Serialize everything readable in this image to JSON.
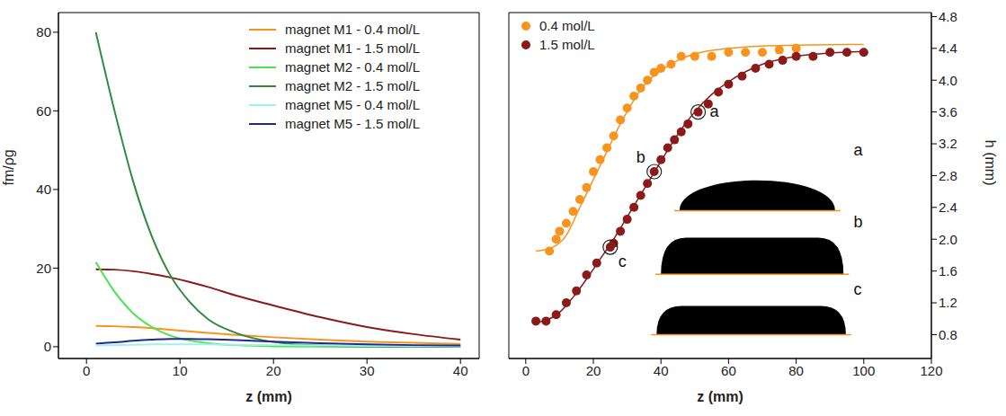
{
  "chart_data": [
    {
      "type": "line",
      "x_label": "z (mm)",
      "y_label": "fm/ρg",
      "x": [
        1,
        3,
        5,
        7,
        9,
        11,
        13,
        16,
        20,
        25,
        30,
        35,
        40
      ],
      "series": [
        {
          "name": "magnet M1 - 0.4 mol/L",
          "color": "#f7941d",
          "values": [
            5.3,
            5.2,
            5.0,
            4.7,
            4.3,
            3.9,
            3.5,
            3.0,
            2.4,
            1.8,
            1.3,
            1.0,
            0.7
          ]
        },
        {
          "name": "magnet M1 - 1.5 mol/L",
          "color": "#8b1a1a",
          "values": [
            19.7,
            19.6,
            19.2,
            18.5,
            17.6,
            16.5,
            15.2,
            13.0,
            10.5,
            7.5,
            5.0,
            3.2,
            1.8
          ]
        },
        {
          "name": "magnet M2 - 0.4 mol/L",
          "color": "#4ce34c",
          "values": [
            21.5,
            14,
            8.5,
            5,
            2.8,
            1.6,
            0.9,
            0.4,
            0.1,
            0,
            0,
            0,
            0
          ]
        },
        {
          "name": "magnet M2 - 1.5 mol/L",
          "color": "#2e8b3e",
          "values": [
            80,
            60,
            42,
            28,
            18,
            11.5,
            7,
            3.5,
            1.2,
            0.3,
            0.1,
            0,
            0
          ]
        },
        {
          "name": "magnet M5 - 0.4 mol/L",
          "color": "#a0f0f0",
          "values": [
            0.3,
            0.4,
            0.5,
            0.6,
            0.6,
            0.6,
            0.6,
            0.5,
            0.4,
            0.3,
            0.2,
            0.15,
            0.1
          ]
        },
        {
          "name": "magnet M5 - 1.5 mol/L",
          "color": "#1f2a8a",
          "values": [
            0.8,
            1.1,
            1.5,
            1.8,
            2.0,
            2.0,
            1.9,
            1.7,
            1.3,
            0.9,
            0.6,
            0.4,
            0.3
          ]
        }
      ],
      "xlim": [
        -3,
        42
      ],
      "ylim": [
        -3,
        85
      ],
      "xticks": [
        0,
        10,
        20,
        30,
        40
      ],
      "yticks": [
        0,
        20,
        40,
        60,
        80
      ],
      "legend": "upper right"
    },
    {
      "type": "scatter",
      "x_label": "z (mm)",
      "y_label": "h (mm)",
      "series": [
        {
          "name": "0.4 mol/L",
          "color": "#f7941d",
          "marker": "circle",
          "x": [
            7,
            9,
            10,
            12,
            14,
            16,
            18,
            20,
            22,
            24,
            26,
            28,
            30,
            32,
            34,
            36,
            38,
            40,
            43,
            46,
            50,
            55,
            60,
            65,
            70,
            75,
            80
          ],
          "values": [
            1.85,
            2.0,
            2.1,
            2.2,
            2.35,
            2.5,
            2.65,
            2.85,
            3.0,
            3.15,
            3.3,
            3.5,
            3.65,
            3.8,
            3.9,
            4.0,
            4.1,
            4.15,
            4.2,
            4.3,
            4.3,
            4.3,
            4.35,
            4.35,
            4.35,
            4.38,
            4.4
          ],
          "fit_x": [
            3,
            8,
            12,
            16,
            20,
            24,
            28,
            32,
            36,
            40,
            45,
            50,
            60,
            70,
            80,
            100
          ],
          "fit_values": [
            1.85,
            1.9,
            2.05,
            2.4,
            2.75,
            3.1,
            3.45,
            3.75,
            3.98,
            4.12,
            4.25,
            4.33,
            4.4,
            4.43,
            4.44,
            4.45
          ]
        },
        {
          "name": "1.5 mol/L",
          "color": "#8b1a1a",
          "marker": "circle",
          "x": [
            3,
            6,
            9,
            12,
            15,
            18,
            21,
            25,
            26,
            28,
            30,
            32,
            34,
            36,
            38,
            40,
            42,
            44,
            46,
            48,
            51,
            54,
            57,
            60,
            64,
            68,
            72,
            76,
            80,
            85,
            90,
            95,
            100
          ],
          "values": [
            0.97,
            0.97,
            1.05,
            1.2,
            1.35,
            1.55,
            1.7,
            1.9,
            1.95,
            2.1,
            2.25,
            2.4,
            2.55,
            2.7,
            2.85,
            3.0,
            3.15,
            3.25,
            3.35,
            3.45,
            3.6,
            3.7,
            3.85,
            3.95,
            4.05,
            4.15,
            4.2,
            4.25,
            4.3,
            4.3,
            4.35,
            4.35,
            4.35
          ],
          "fit_x": [
            2,
            6,
            10,
            14,
            18,
            22,
            26,
            30,
            34,
            38,
            42,
            46,
            50,
            55,
            60,
            70,
            80,
            90,
            100
          ],
          "fit_values": [
            0.95,
            0.98,
            1.08,
            1.27,
            1.5,
            1.75,
            2.0,
            2.28,
            2.56,
            2.84,
            3.12,
            3.38,
            3.6,
            3.82,
            3.98,
            4.2,
            4.3,
            4.34,
            4.36
          ]
        }
      ],
      "xlim": [
        -5,
        120
      ],
      "ylim": [
        0.5,
        4.85
      ],
      "xticks": [
        0,
        20,
        40,
        60,
        80,
        100,
        120
      ],
      "yticks": [
        0.8,
        1.2,
        1.6,
        {
          "value": 2,
          "label": "2.0"
        },
        2.4,
        2.8,
        3.2,
        3.6,
        {
          "value": 4,
          "label": "4.0"
        },
        4.4,
        4.8
      ],
      "legend": "upper left",
      "annotations": [
        {
          "text": "a",
          "x": 51,
          "y": 3.6
        },
        {
          "text": "b",
          "x": 38,
          "y": 2.85
        },
        {
          "text": "c",
          "x": 25,
          "y": 1.9
        }
      ]
    }
  ]
}
